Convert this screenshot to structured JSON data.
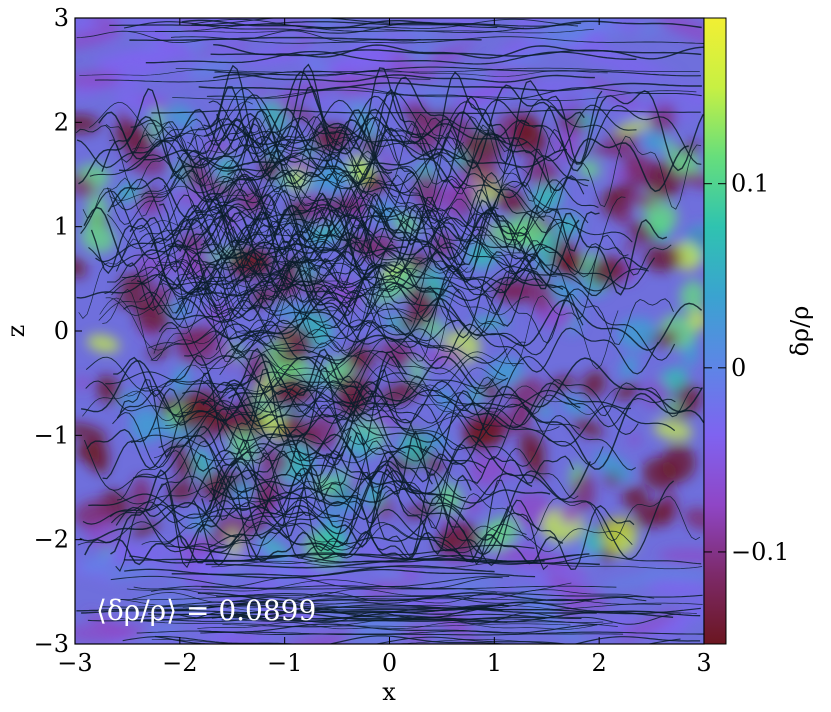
{
  "chart_data": {
    "type": "heatmap",
    "title": "",
    "xlabel": "x",
    "ylabel": "z",
    "xlim": [
      -3,
      3
    ],
    "ylim": [
      -3,
      3
    ],
    "x_ticks": [
      -3,
      -2,
      -1,
      0,
      1,
      2,
      3
    ],
    "y_ticks": [
      -3,
      -2,
      -1,
      0,
      1,
      2,
      3
    ],
    "x_tick_labels": [
      "−3",
      "−2",
      "−1",
      "0",
      "1",
      "2",
      "3"
    ],
    "y_tick_labels": [
      "−3",
      "−2",
      "−1",
      "0",
      "1",
      "2",
      "3"
    ],
    "colorbar": {
      "label": "δρ/ρ",
      "min": -0.15,
      "max": 0.19,
      "ticks": [
        0.1,
        0,
        -0.1
      ],
      "tick_labels": [
        "0.1",
        "0",
        "−0.1"
      ],
      "colormap": [
        "#6b1620",
        "#7d2a6a",
        "#8f46c6",
        "#7f63f0",
        "#5d86e6",
        "#3aa3d0",
        "#2fc3b0",
        "#66de7c",
        "#c7f043",
        "#f2ef33"
      ]
    },
    "annotation": "⟨δρ/ρ⟩ = 0.0899",
    "description_values": {
      "mean_abs_density_perturbation": 0.0899
    },
    "overlay": "streamlines",
    "grid": false
  }
}
